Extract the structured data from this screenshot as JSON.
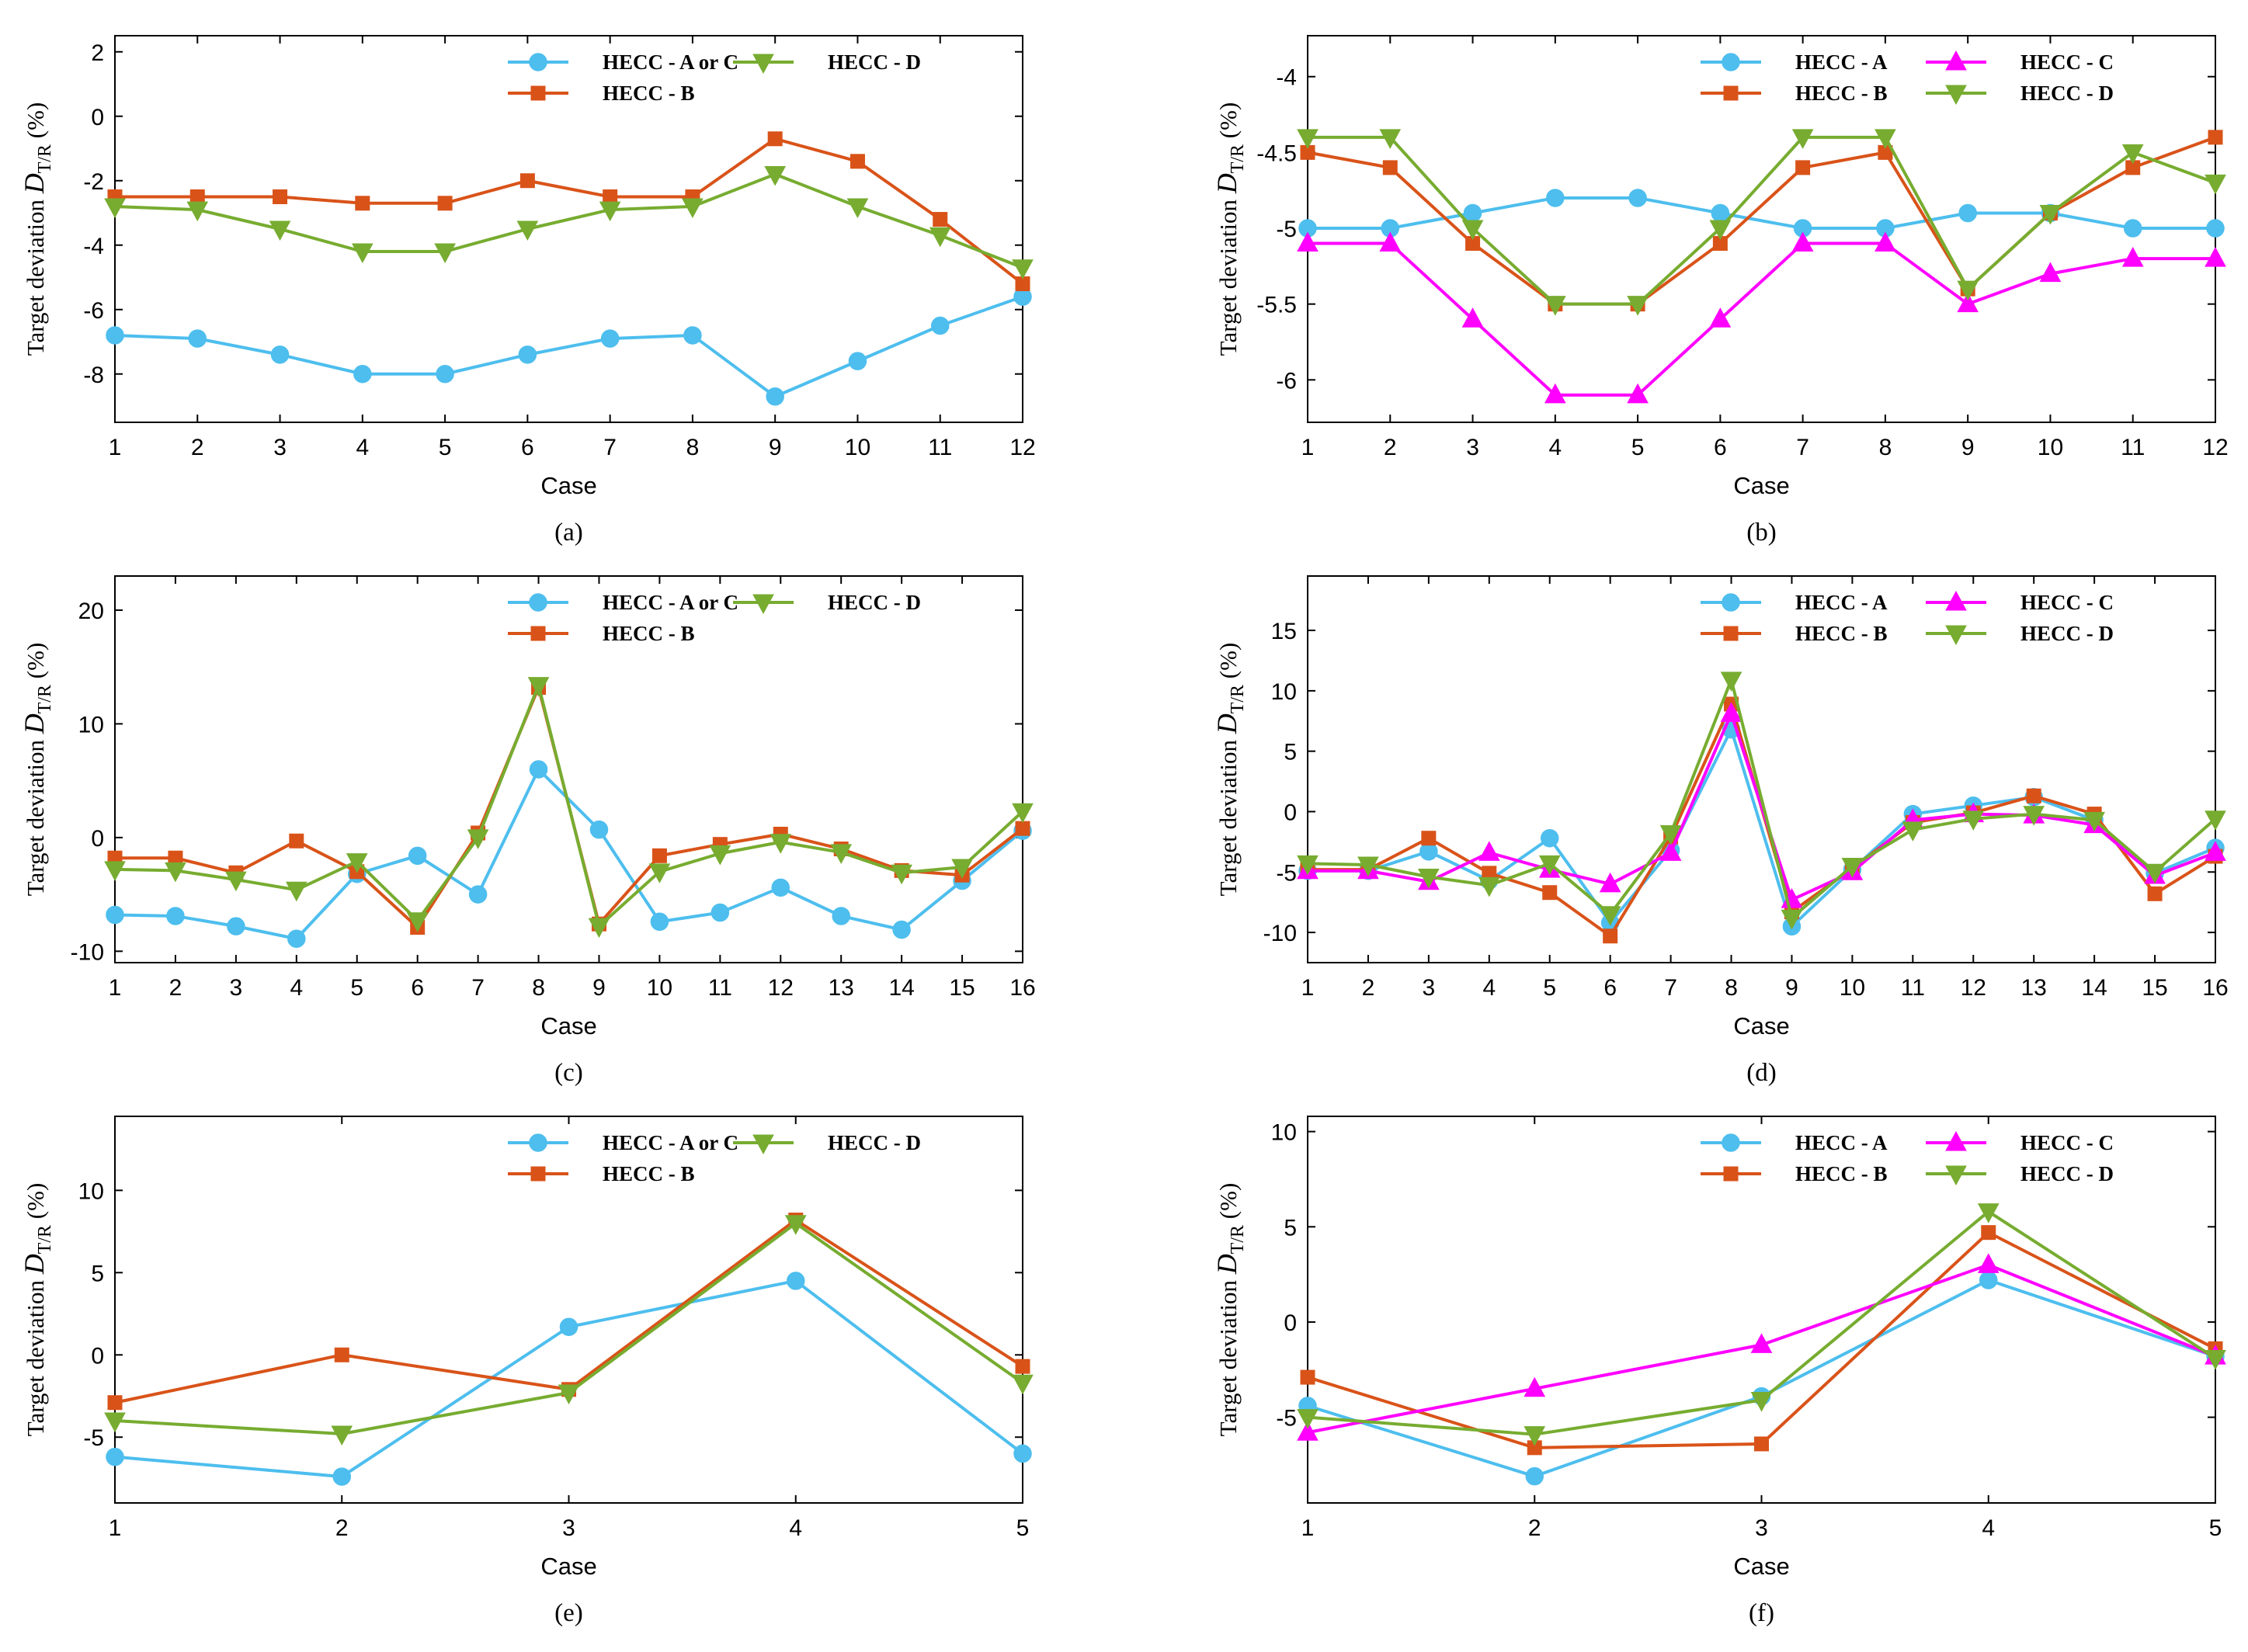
{
  "colors": {
    "A": "#4DBEEE",
    "B": "#D95319",
    "C": "#FF00FF",
    "D": "#77AC30"
  },
  "ylabel_parts": {
    "main": "Target deviation ",
    "var": "D",
    "sub": "T/R",
    "unit": "(%)"
  },
  "chart_data": [
    {
      "type": "line",
      "label": "(a)",
      "xlabel": "Case",
      "ylabel": "Target deviation D_T/R (%)",
      "x": [
        1,
        2,
        3,
        4,
        5,
        6,
        7,
        8,
        9,
        10,
        11,
        12
      ],
      "ylim": [
        -9.5,
        2.5
      ],
      "yticks": [
        -8,
        -6,
        -4,
        -2,
        0,
        2
      ],
      "series": [
        {
          "name": "HECC - A or C",
          "key": "A",
          "marker": "circle",
          "values": [
            -6.8,
            -6.9,
            -7.4,
            -8.0,
            -8.0,
            -7.4,
            -6.9,
            -6.8,
            -8.7,
            -7.6,
            -6.5,
            -5.6
          ]
        },
        {
          "name": "HECC - B",
          "key": "B",
          "marker": "square",
          "values": [
            -2.5,
            -2.5,
            -2.5,
            -2.7,
            -2.7,
            -2.0,
            -2.5,
            -2.5,
            -0.7,
            -1.4,
            -3.2,
            -5.2
          ]
        },
        {
          "name": "HECC - D",
          "key": "D",
          "marker": "triangle-down",
          "values": [
            -2.8,
            -2.9,
            -3.5,
            -4.2,
            -4.2,
            -3.5,
            -2.9,
            -2.8,
            -1.8,
            -2.8,
            -3.7,
            -4.7
          ]
        }
      ]
    },
    {
      "type": "line",
      "label": "(b)",
      "xlabel": "Case",
      "ylabel": "Target deviation D_T/R (%)",
      "x": [
        1,
        2,
        3,
        4,
        5,
        6,
        7,
        8,
        9,
        10,
        11,
        12
      ],
      "ylim": [
        -6.28,
        -3.73
      ],
      "yticks": [
        -6,
        -5.5,
        -5,
        -4.5,
        -4
      ],
      "ytick_labels": [
        "-6",
        "-5.5",
        "-5",
        "-4.5",
        "-4"
      ],
      "series": [
        {
          "name": "HECC - A",
          "key": "A",
          "marker": "circle",
          "values": [
            -5.0,
            -5.0,
            -4.9,
            -4.8,
            -4.8,
            -4.9,
            -5.0,
            -5.0,
            -4.9,
            -4.9,
            -5.0,
            -5.0
          ]
        },
        {
          "name": "HECC - B",
          "key": "B",
          "marker": "square",
          "values": [
            -4.5,
            -4.6,
            -5.1,
            -5.5,
            -5.5,
            -5.1,
            -4.6,
            -4.5,
            -5.4,
            -4.9,
            -4.6,
            -4.4
          ]
        },
        {
          "name": "HECC - C",
          "key": "C",
          "marker": "triangle-up",
          "values": [
            -5.1,
            -5.1,
            -5.6,
            -6.1,
            -6.1,
            -5.6,
            -5.1,
            -5.1,
            -5.5,
            -5.3,
            -5.2,
            -5.2
          ]
        },
        {
          "name": "HECC - D",
          "key": "D",
          "marker": "triangle-down",
          "values": [
            -4.4,
            -4.4,
            -5.0,
            -5.5,
            -5.5,
            -5.0,
            -4.4,
            -4.4,
            -5.4,
            -4.9,
            -4.5,
            -4.7
          ]
        }
      ]
    },
    {
      "type": "line",
      "label": "(c)",
      "xlabel": "Case",
      "ylabel": "Target deviation D_T/R (%)",
      "x": [
        1,
        2,
        3,
        4,
        5,
        6,
        7,
        8,
        9,
        10,
        11,
        12,
        13,
        14,
        15,
        16
      ],
      "ylim": [
        -11,
        23
      ],
      "yticks": [
        -10,
        0,
        10,
        20
      ],
      "series": [
        {
          "name": "HECC - A or C",
          "key": "A",
          "marker": "circle",
          "values": [
            -6.8,
            -6.9,
            -7.8,
            -8.9,
            -3.2,
            -1.6,
            -5.0,
            6.0,
            0.7,
            -7.4,
            -6.6,
            -4.4,
            -6.9,
            -8.1,
            -3.8,
            0.6
          ]
        },
        {
          "name": "HECC - B",
          "key": "B",
          "marker": "square",
          "values": [
            -1.8,
            -1.8,
            -3.1,
            -0.3,
            -3.0,
            -7.9,
            0.4,
            13.2,
            -7.6,
            -1.6,
            -0.6,
            0.3,
            -1.0,
            -2.9,
            -3.3,
            0.8
          ]
        },
        {
          "name": "HECC - D",
          "key": "D",
          "marker": "triangle-down",
          "values": [
            -2.8,
            -2.9,
            -3.7,
            -4.6,
            -2.1,
            -7.3,
            0.0,
            13.4,
            -7.8,
            -3.0,
            -1.4,
            -0.4,
            -1.3,
            -3.1,
            -2.6,
            2.3
          ]
        }
      ]
    },
    {
      "type": "line",
      "label": "(d)",
      "xlabel": "Case",
      "ylabel": "Target deviation D_T/R (%)",
      "x": [
        1,
        2,
        3,
        4,
        5,
        6,
        7,
        8,
        9,
        10,
        11,
        12,
        13,
        14,
        15,
        16
      ],
      "ylim": [
        -12.5,
        19.5
      ],
      "yticks": [
        -10,
        -5,
        0,
        5,
        10,
        15
      ],
      "series": [
        {
          "name": "HECC - A",
          "key": "A",
          "marker": "circle",
          "values": [
            -4.9,
            -4.9,
            -3.3,
            -5.7,
            -2.2,
            -9.2,
            -3.2,
            6.8,
            -9.5,
            -4.8,
            -0.2,
            0.5,
            1.2,
            -0.7,
            -5.1,
            -3.0
          ]
        },
        {
          "name": "HECC - B",
          "key": "B",
          "marker": "square",
          "values": [
            -4.8,
            -4.8,
            -2.2,
            -5.1,
            -6.7,
            -10.3,
            -2.1,
            8.9,
            -8.3,
            -4.7,
            -0.9,
            -0.1,
            1.3,
            -0.2,
            -6.8,
            -3.7
          ]
        },
        {
          "name": "HECC - C",
          "key": "C",
          "marker": "triangle-up",
          "values": [
            -4.9,
            -4.9,
            -5.8,
            -3.4,
            -4.8,
            -6.0,
            -3.4,
            8.1,
            -7.3,
            -5.0,
            -0.7,
            -0.2,
            -0.3,
            -1.1,
            -5.3,
            -3.4
          ]
        },
        {
          "name": "HECC - D",
          "key": "D",
          "marker": "triangle-down",
          "values": [
            -4.3,
            -4.4,
            -5.4,
            -6.1,
            -4.3,
            -8.5,
            -1.8,
            10.9,
            -8.8,
            -4.5,
            -1.5,
            -0.6,
            -0.2,
            -0.7,
            -5.0,
            -0.6
          ]
        }
      ]
    },
    {
      "type": "line",
      "label": "(e)",
      "xlabel": "Case",
      "ylabel": "Target deviation D_T/R (%)",
      "x": [
        1,
        2,
        3,
        4,
        5
      ],
      "ylim": [
        -9,
        14.5
      ],
      "yticks": [
        -5,
        0,
        5,
        10
      ],
      "series": [
        {
          "name": "HECC - A or C",
          "key": "A",
          "marker": "circle",
          "values": [
            -6.2,
            -7.4,
            1.7,
            4.5,
            -6.0
          ]
        },
        {
          "name": "HECC - B",
          "key": "B",
          "marker": "square",
          "values": [
            -2.9,
            0.0,
            -2.1,
            8.2,
            -0.7
          ]
        },
        {
          "name": "HECC - D",
          "key": "D",
          "marker": "triangle-down",
          "values": [
            -4.0,
            -4.8,
            -2.3,
            8.0,
            -1.7
          ]
        }
      ]
    },
    {
      "type": "line",
      "label": "(f)",
      "xlabel": "Case",
      "ylabel": "Target deviation D_T/R (%)",
      "x": [
        1,
        2,
        3,
        4,
        5
      ],
      "ylim": [
        -9.5,
        10.8
      ],
      "yticks": [
        -5,
        0,
        5,
        10
      ],
      "series": [
        {
          "name": "HECC - A",
          "key": "A",
          "marker": "circle",
          "values": [
            -4.4,
            -8.1,
            -3.9,
            2.2,
            -1.8
          ]
        },
        {
          "name": "HECC - B",
          "key": "B",
          "marker": "square",
          "values": [
            -2.9,
            -6.6,
            -6.4,
            4.7,
            -1.4
          ]
        },
        {
          "name": "HECC - C",
          "key": "C",
          "marker": "triangle-up",
          "values": [
            -5.8,
            -3.5,
            -1.2,
            3.0,
            -1.8
          ]
        },
        {
          "name": "HECC - D",
          "key": "D",
          "marker": "triangle-down",
          "values": [
            -5.0,
            -5.9,
            -4.1,
            5.8,
            -1.9
          ]
        }
      ]
    }
  ]
}
